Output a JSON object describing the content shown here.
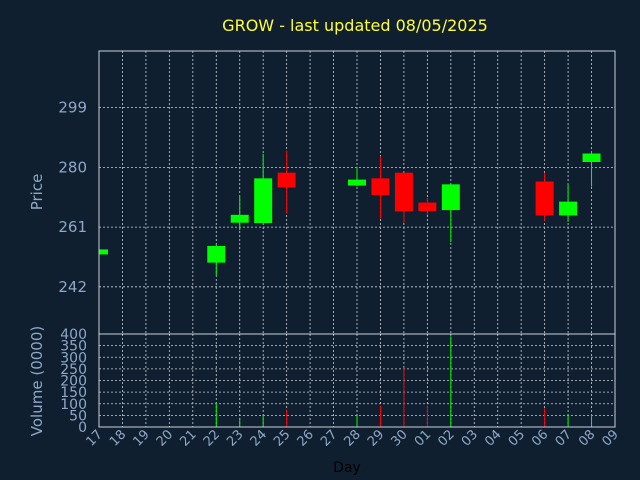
{
  "chart_data": {
    "type": "candlestick",
    "title": "GROW - last updated 08/05/2025",
    "price_panel": {
      "ylabel": "Price",
      "ylim": [
        227,
        317
      ],
      "yticks": [
        242,
        261,
        280,
        299
      ],
      "grid": true
    },
    "volume_panel": {
      "ylabel": "Volume (0000)",
      "ylim": [
        0,
        400
      ],
      "yticks": [
        0,
        50,
        100,
        150,
        200,
        250,
        300,
        350,
        400
      ],
      "grid": true
    },
    "xlabel": "Day",
    "x_ticks": [
      "17",
      "18",
      "19",
      "20",
      "21",
      "22",
      "23",
      "24",
      "25",
      "26",
      "27",
      "28",
      "29",
      "30",
      "01",
      "02",
      "03",
      "04",
      "05",
      "06",
      "07",
      "08",
      "09"
    ],
    "up_color": "#00ff00",
    "down_color": "#ff0000",
    "candles": [
      {
        "day": "17",
        "open": 252.3,
        "close": 253.9,
        "high": 254.2,
        "low": 252.0,
        "volume": 0
      },
      {
        "day": "22",
        "open": 249.7,
        "close": 255.0,
        "high": 255.3,
        "low": 245.6,
        "volume": 105
      },
      {
        "day": "23",
        "open": 262.4,
        "close": 264.9,
        "high": 271.0,
        "low": 260.0,
        "volume": 40
      },
      {
        "day": "24",
        "open": 262.3,
        "close": 276.5,
        "high": 284.3,
        "low": 262.1,
        "volume": 50
      },
      {
        "day": "25",
        "open": 278.3,
        "close": 273.6,
        "high": 285.3,
        "low": 265.5,
        "volume": 75
      },
      {
        "day": "28",
        "open": 274.2,
        "close": 276.1,
        "high": 280.2,
        "low": 274.0,
        "volume": 50
      },
      {
        "day": "29",
        "open": 276.5,
        "close": 271.2,
        "high": 283.5,
        "low": 263.7,
        "volume": 90
      },
      {
        "day": "30",
        "open": 278.3,
        "close": 266.0,
        "high": 278.3,
        "low": 262.3,
        "volume": 255
      },
      {
        "day": "01",
        "open": 268.8,
        "close": 266.1,
        "high": 270.3,
        "low": 264.9,
        "volume": 90
      },
      {
        "day": "02",
        "open": 266.4,
        "close": 274.6,
        "high": 274.6,
        "low": 256.2,
        "volume": 390
      },
      {
        "day": "06",
        "open": 275.5,
        "close": 264.7,
        "high": 278.3,
        "low": 263.0,
        "volume": 80
      },
      {
        "day": "07",
        "open": 264.7,
        "close": 269.1,
        "high": 275.0,
        "low": 262.7,
        "volume": 55
      },
      {
        "day": "08",
        "open": 281.7,
        "close": 284.4,
        "high": 285.0,
        "low": 273.9,
        "volume": 55
      }
    ]
  }
}
